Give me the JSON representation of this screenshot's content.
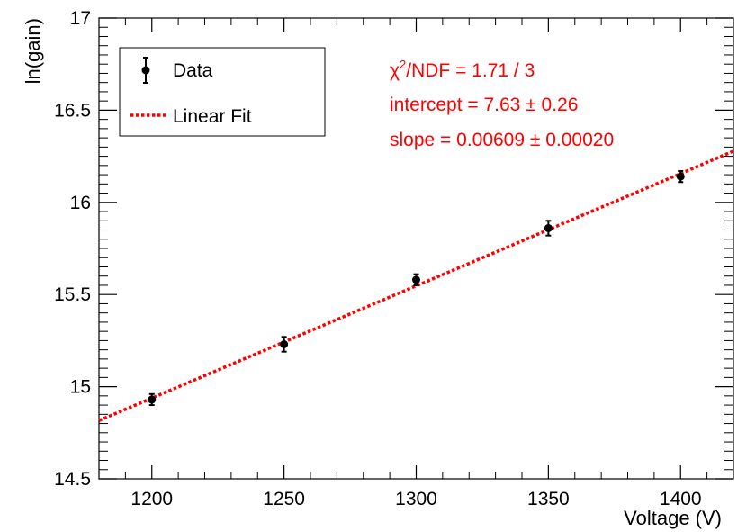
{
  "chart_data": {
    "type": "scatter",
    "title": "",
    "xlabel": "Voltage (V)",
    "ylabel": "ln(gain)",
    "xlim": [
      1180,
      1420
    ],
    "ylim": [
      14.5,
      17
    ],
    "x_ticks": [
      1200,
      1250,
      1300,
      1350,
      1400
    ],
    "y_ticks": [
      "14.5",
      "15",
      "15.5",
      "16",
      "16.5",
      "17"
    ],
    "grid": false,
    "legend": {
      "placement": "top-left",
      "entries": [
        "Data",
        "Linear Fit"
      ]
    },
    "series": [
      {
        "name": "Data",
        "style": "points-with-error-bars",
        "color": "#000000",
        "x": [
          1200,
          1250,
          1300,
          1350,
          1400
        ],
        "y": [
          14.93,
          15.23,
          15.58,
          15.86,
          16.14
        ],
        "yerr": [
          0.03,
          0.04,
          0.03,
          0.04,
          0.03
        ]
      },
      {
        "name": "Linear Fit",
        "style": "dashed-line",
        "color": "#ff0000",
        "intercept": 7.63,
        "slope": 0.00609
      }
    ],
    "annotations": {
      "chi2_prefix": "χ",
      "chi2_sup": "2",
      "chi2_rest": "/NDF = 1.71 / 3",
      "intercept": "intercept = 7.63 ± 0.26",
      "slope": "slope = 0.00609 ± 0.00020",
      "color": "#ff0000"
    }
  }
}
